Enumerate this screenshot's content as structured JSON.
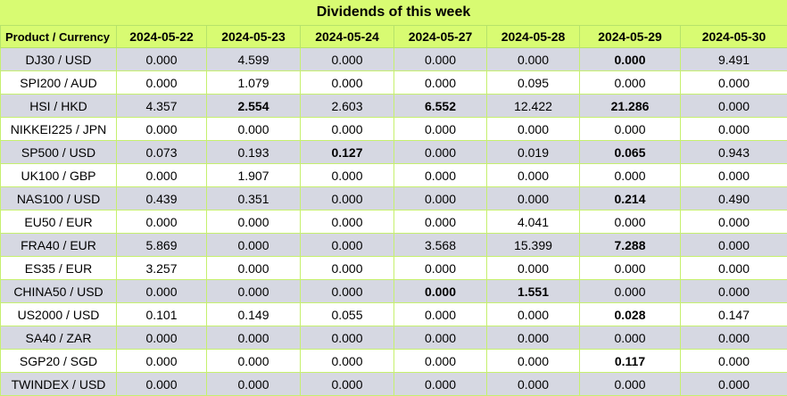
{
  "title": "Dividends of this week",
  "columns": [
    "Product / Currency",
    "2024-05-22",
    "2024-05-23",
    "2024-05-24",
    "2024-05-27",
    "2024-05-28",
    "2024-05-29",
    "2024-05-30"
  ],
  "rows": [
    {
      "product": "DJ30 / USD",
      "values": [
        "0.000",
        "4.599",
        "0.000",
        "0.000",
        "0.000",
        "0.000",
        "9.491"
      ],
      "bold": [
        false,
        false,
        false,
        false,
        false,
        true,
        false
      ]
    },
    {
      "product": "SPI200 / AUD",
      "values": [
        "0.000",
        "1.079",
        "0.000",
        "0.000",
        "0.095",
        "0.000",
        "0.000"
      ],
      "bold": [
        false,
        false,
        false,
        false,
        false,
        false,
        false
      ]
    },
    {
      "product": "HSI / HKD",
      "values": [
        "4.357",
        "2.554",
        "2.603",
        "6.552",
        "12.422",
        "21.286",
        "0.000"
      ],
      "bold": [
        false,
        true,
        false,
        true,
        false,
        true,
        false
      ]
    },
    {
      "product": "NIKKEI225 / JPN",
      "values": [
        "0.000",
        "0.000",
        "0.000",
        "0.000",
        "0.000",
        "0.000",
        "0.000"
      ],
      "bold": [
        false,
        false,
        false,
        false,
        false,
        false,
        false
      ]
    },
    {
      "product": "SP500 / USD",
      "values": [
        "0.073",
        "0.193",
        "0.127",
        "0.000",
        "0.019",
        "0.065",
        "0.943"
      ],
      "bold": [
        false,
        false,
        true,
        false,
        false,
        true,
        false
      ]
    },
    {
      "product": "UK100 / GBP",
      "values": [
        "0.000",
        "1.907",
        "0.000",
        "0.000",
        "0.000",
        "0.000",
        "0.000"
      ],
      "bold": [
        false,
        false,
        false,
        false,
        false,
        false,
        false
      ]
    },
    {
      "product": "NAS100 / USD",
      "values": [
        "0.439",
        "0.351",
        "0.000",
        "0.000",
        "0.000",
        "0.214",
        "0.490"
      ],
      "bold": [
        false,
        false,
        false,
        false,
        false,
        true,
        false
      ]
    },
    {
      "product": "EU50 / EUR",
      "values": [
        "0.000",
        "0.000",
        "0.000",
        "0.000",
        "4.041",
        "0.000",
        "0.000"
      ],
      "bold": [
        false,
        false,
        false,
        false,
        false,
        false,
        false
      ]
    },
    {
      "product": "FRA40 / EUR",
      "values": [
        "5.869",
        "0.000",
        "0.000",
        "3.568",
        "15.399",
        "7.288",
        "0.000"
      ],
      "bold": [
        false,
        false,
        false,
        false,
        false,
        true,
        false
      ]
    },
    {
      "product": "ES35 / EUR",
      "values": [
        "3.257",
        "0.000",
        "0.000",
        "0.000",
        "0.000",
        "0.000",
        "0.000"
      ],
      "bold": [
        false,
        false,
        false,
        false,
        false,
        false,
        false
      ]
    },
    {
      "product": "CHINA50 / USD",
      "values": [
        "0.000",
        "0.000",
        "0.000",
        "0.000",
        "1.551",
        "0.000",
        "0.000"
      ],
      "bold": [
        false,
        false,
        false,
        true,
        true,
        false,
        false
      ]
    },
    {
      "product": "US2000 / USD",
      "values": [
        "0.101",
        "0.149",
        "0.055",
        "0.000",
        "0.000",
        "0.028",
        "0.147"
      ],
      "bold": [
        false,
        false,
        false,
        false,
        false,
        true,
        false
      ]
    },
    {
      "product": "SA40 / ZAR",
      "values": [
        "0.000",
        "0.000",
        "0.000",
        "0.000",
        "0.000",
        "0.000",
        "0.000"
      ],
      "bold": [
        false,
        false,
        false,
        false,
        false,
        false,
        false
      ]
    },
    {
      "product": "SGP20 / SGD",
      "values": [
        "0.000",
        "0.000",
        "0.000",
        "0.000",
        "0.000",
        "0.117",
        "0.000"
      ],
      "bold": [
        false,
        false,
        false,
        false,
        false,
        true,
        false
      ]
    },
    {
      "product": "TWINDEX / USD",
      "values": [
        "0.000",
        "0.000",
        "0.000",
        "0.000",
        "0.000",
        "0.000",
        "0.000"
      ],
      "bold": [
        false,
        false,
        false,
        false,
        false,
        false,
        false
      ]
    }
  ]
}
